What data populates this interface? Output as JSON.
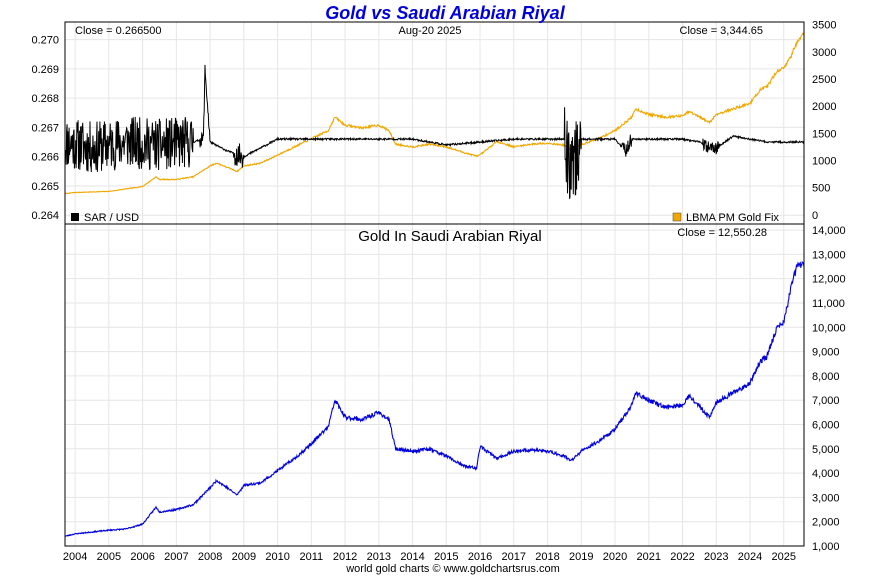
{
  "title": "Gold vs Saudi Arabian Riyal",
  "footer": "world gold charts © www.goldchartsrus.com",
  "x_tick_labels": [
    "2004",
    "2005",
    "2006",
    "2007",
    "2008",
    "2009",
    "2010",
    "2011",
    "2012",
    "2013",
    "2014",
    "2015",
    "2016",
    "2017",
    "2018",
    "2019",
    "2020",
    "2021",
    "2022",
    "2023",
    "2024",
    "2025"
  ],
  "colors": {
    "title": "#0000dd",
    "sar": "#000000",
    "gold": "#f0a800",
    "gold_sar": "#0000dd",
    "grid": "#e6e6e6"
  },
  "chart_data": [
    {
      "type": "line",
      "panel": "top",
      "annotations": {
        "left_close": "Close = 0.266500",
        "date": "Aug-20  2025",
        "right_close": "Close = 3,344.65"
      },
      "x_range": [
        2003.7,
        2025.6
      ],
      "left_axis": {
        "range": [
          0.2637,
          0.2706
        ],
        "ticks": [
          0.264,
          0.265,
          0.266,
          0.267,
          0.268,
          0.269,
          0.27
        ],
        "tick_labels": [
          "0.264",
          "0.265",
          "0.266",
          "0.267",
          "0.268",
          "0.269",
          "0.270"
        ]
      },
      "right_axis": {
        "range": [
          -170,
          3550
        ],
        "ticks": [
          0,
          500,
          1000,
          1500,
          2000,
          2500,
          3000,
          3500
        ],
        "tick_labels": [
          "0",
          "500",
          "1000",
          "1500",
          "2000",
          "2500",
          "3000",
          "3500"
        ]
      },
      "legend": [
        "SAR / USD",
        "LBMA PM Gold Fix"
      ],
      "legend_placement": [
        "bottom-left",
        "bottom-right"
      ],
      "grid": true,
      "series": [
        {
          "name": "SAR / USD",
          "axis": "left",
          "x": [
            2003.7,
            2004.5,
            2005.5,
            2006.5,
            2007.5,
            2007.8,
            2007.85,
            2008.0,
            2008.5,
            2009.0,
            2010.0,
            2011.0,
            2012.0,
            2013.0,
            2014.0,
            2015.0,
            2016.0,
            2017.0,
            2018.0,
            2018.5,
            2018.6,
            2018.9,
            2019.0,
            2019.5,
            2020.0,
            2020.3,
            2020.5,
            2021.0,
            2022.0,
            2022.5,
            2022.8,
            2023.0,
            2023.5,
            2024.0,
            2024.5,
            2025.0,
            2025.6
          ],
          "values": [
            0.2665,
            0.2663,
            0.2665,
            0.2664,
            0.2665,
            0.2666,
            0.269,
            0.2665,
            0.2662,
            0.266,
            0.2666,
            0.2666,
            0.2666,
            0.2666,
            0.2666,
            0.2664,
            0.2665,
            0.2666,
            0.2666,
            0.2666,
            0.2658,
            0.266,
            0.2666,
            0.2666,
            0.2666,
            0.2662,
            0.2666,
            0.2666,
            0.2666,
            0.2665,
            0.2663,
            0.2663,
            0.2667,
            0.2666,
            0.2665,
            0.2665,
            0.2665
          ],
          "noisy_periods": [
            [
              2003.7,
              2007.5,
              0.0009
            ],
            [
              2018.5,
              2019.0,
              0.0013
            ],
            [
              2007.7,
              2008.0,
              0.00025
            ],
            [
              2008.7,
              2009.0,
              0.0004
            ],
            [
              2020.2,
              2020.5,
              0.00025
            ],
            [
              2022.6,
              2023.1,
              0.0002
            ]
          ]
        },
        {
          "name": "LBMA PM Gold Fix",
          "axis": "right",
          "x": [
            2003.7,
            2004.0,
            2005.0,
            2006.0,
            2006.4,
            2006.5,
            2007.0,
            2007.5,
            2008.0,
            2008.2,
            2008.8,
            2009.0,
            2009.5,
            2010.0,
            2010.5,
            2011.0,
            2011.5,
            2011.7,
            2012.0,
            2012.5,
            2013.0,
            2013.3,
            2013.5,
            2014.0,
            2014.5,
            2015.0,
            2015.5,
            2015.9,
            2016.0,
            2016.5,
            2017.0,
            2017.5,
            2018.0,
            2018.5,
            2018.7,
            2019.0,
            2019.5,
            2020.0,
            2020.5,
            2020.6,
            2021.0,
            2021.5,
            2022.0,
            2022.2,
            2022.8,
            2023.0,
            2023.5,
            2024.0,
            2024.3,
            2024.5,
            2024.8,
            2025.0,
            2025.2,
            2025.4,
            2025.6
          ],
          "values": [
            390,
            410,
            430,
            520,
            700,
            650,
            650,
            700,
            900,
            950,
            800,
            900,
            950,
            1100,
            1250,
            1400,
            1550,
            1800,
            1650,
            1600,
            1650,
            1550,
            1300,
            1250,
            1300,
            1250,
            1150,
            1080,
            1100,
            1350,
            1250,
            1300,
            1320,
            1280,
            1200,
            1290,
            1400,
            1550,
            1800,
            1950,
            1850,
            1800,
            1820,
            1900,
            1700,
            1850,
            1950,
            2050,
            2300,
            2350,
            2650,
            2700,
            2900,
            3200,
            3344
          ]
        }
      ]
    },
    {
      "type": "line",
      "panel": "bottom",
      "title": "Gold In Saudi Arabian Riyal",
      "annotations": {
        "right_close": "Close = 12,550.28"
      },
      "x_range": [
        2003.7,
        2025.6
      ],
      "y_axis": {
        "range": [
          1000,
          14250
        ],
        "ticks": [
          1000,
          2000,
          3000,
          4000,
          5000,
          6000,
          7000,
          8000,
          9000,
          10000,
          11000,
          12000,
          13000,
          14000
        ],
        "tick_labels": [
          "1,000",
          "2,000",
          "3,000",
          "4,000",
          "5,000",
          "6,000",
          "7,000",
          "8,000",
          "9,000",
          "10,000",
          "11,000",
          "12,000",
          "13,000",
          "14,000"
        ]
      },
      "grid": true,
      "series": [
        {
          "name": "Gold In Saudi Arabian Riyal",
          "x": [
            2003.7,
            2004.0,
            2005.0,
            2005.5,
            2006.0,
            2006.4,
            2006.5,
            2007.0,
            2007.5,
            2008.0,
            2008.2,
            2008.8,
            2009.0,
            2009.5,
            2010.0,
            2010.5,
            2011.0,
            2011.5,
            2011.7,
            2012.0,
            2012.5,
            2013.0,
            2013.3,
            2013.5,
            2014.0,
            2014.5,
            2015.0,
            2015.5,
            2015.9,
            2016.0,
            2016.5,
            2017.0,
            2017.5,
            2018.0,
            2018.5,
            2018.7,
            2019.0,
            2019.5,
            2020.0,
            2020.5,
            2020.6,
            2021.0,
            2021.5,
            2022.0,
            2022.2,
            2022.8,
            2023.0,
            2023.5,
            2024.0,
            2024.3,
            2024.5,
            2024.8,
            2025.0,
            2025.2,
            2025.4,
            2025.6
          ],
          "values": [
            1400,
            1500,
            1650,
            1700,
            1900,
            2600,
            2400,
            2500,
            2700,
            3400,
            3700,
            3100,
            3500,
            3600,
            4100,
            4600,
            5200,
            5900,
            7000,
            6300,
            6200,
            6500,
            6200,
            5000,
            4900,
            5000,
            4700,
            4300,
            4200,
            5100,
            4600,
            4900,
            4950,
            4900,
            4700,
            4500,
            4900,
            5300,
            5800,
            6800,
            7300,
            7000,
            6700,
            6800,
            7200,
            6300,
            6900,
            7300,
            7700,
            8600,
            8800,
            10000,
            10200,
            11500,
            12600,
            12550
          ]
        }
      ]
    }
  ]
}
